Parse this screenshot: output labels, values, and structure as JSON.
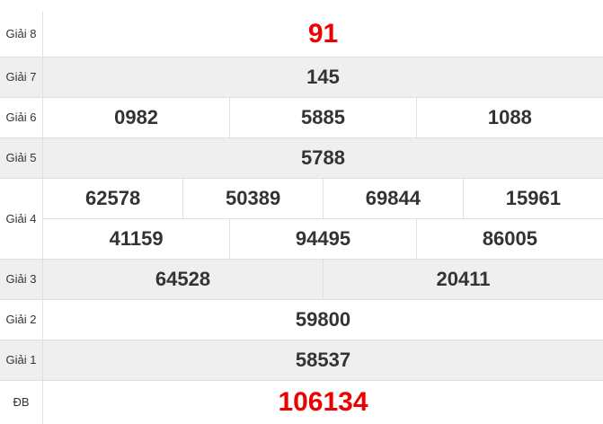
{
  "colors": {
    "highlight": "#ee0000",
    "text": "#333333",
    "alt_row": "#efefef"
  },
  "rows": [
    {
      "label": "Giải 8",
      "numbers": [
        "91"
      ]
    },
    {
      "label": "Giải 7",
      "numbers": [
        "145"
      ]
    },
    {
      "label": "Giải 6",
      "numbers": [
        "0982",
        "5885",
        "1088"
      ]
    },
    {
      "label": "Giải 5",
      "numbers": [
        "5788"
      ]
    },
    {
      "label": "Giải 4",
      "numbers_row1": [
        "62578",
        "50389",
        "69844",
        "15961"
      ],
      "numbers_row2": [
        "41159",
        "94495",
        "86005"
      ]
    },
    {
      "label": "Giải 3",
      "numbers": [
        "64528",
        "20411"
      ]
    },
    {
      "label": "Giải 2",
      "numbers": [
        "59800"
      ]
    },
    {
      "label": "Giải 1",
      "numbers": [
        "58537"
      ]
    },
    {
      "label": "ĐB",
      "numbers": [
        "106134"
      ]
    }
  ]
}
